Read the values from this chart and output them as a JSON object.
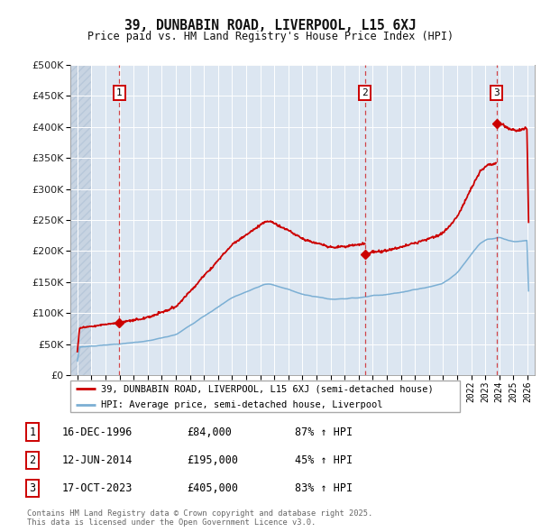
{
  "title": "39, DUNBABIN ROAD, LIVERPOOL, L15 6XJ",
  "subtitle": "Price paid vs. HM Land Registry's House Price Index (HPI)",
  "legend_line1": "39, DUNBABIN ROAD, LIVERPOOL, L15 6XJ (semi-detached house)",
  "legend_line2": "HPI: Average price, semi-detached house, Liverpool",
  "footer": "Contains HM Land Registry data © Crown copyright and database right 2025.\nThis data is licensed under the Open Government Licence v3.0.",
  "sale_events": [
    {
      "num": "1",
      "date": "16-DEC-1996",
      "price": "£84,000",
      "pct": "87% ↑ HPI",
      "year": 1996.97,
      "price_val": 84000
    },
    {
      "num": "2",
      "date": "12-JUN-2014",
      "price": "£195,000",
      "pct": "45% ↑ HPI",
      "year": 2014.45,
      "price_val": 195000
    },
    {
      "num": "3",
      "date": "17-OCT-2023",
      "price": "£405,000",
      "pct": "83% ↑ HPI",
      "year": 2023.79,
      "price_val": 405000
    }
  ],
  "property_color": "#cc0000",
  "hpi_color": "#7bafd4",
  "plot_bg_color": "#dce6f1",
  "grid_color": "#ffffff",
  "ylim": [
    0,
    500000
  ],
  "xlim": [
    1993.5,
    2026.5
  ],
  "yticks": [
    0,
    50000,
    100000,
    150000,
    200000,
    250000,
    300000,
    350000,
    400000,
    450000,
    500000
  ],
  "xticks": [
    1994,
    1995,
    1996,
    1997,
    1998,
    1999,
    2000,
    2001,
    2002,
    2003,
    2004,
    2005,
    2006,
    2007,
    2008,
    2009,
    2010,
    2011,
    2012,
    2013,
    2014,
    2015,
    2016,
    2017,
    2018,
    2019,
    2020,
    2021,
    2022,
    2023,
    2024,
    2025,
    2026
  ]
}
